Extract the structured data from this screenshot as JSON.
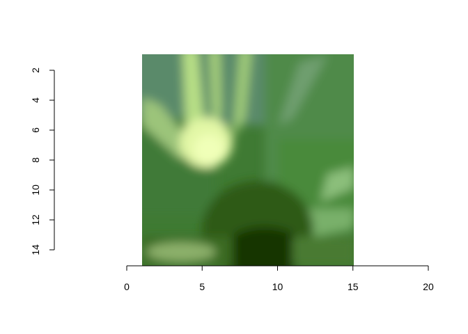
{
  "chart_data": {
    "type": "heatmap",
    "title": "",
    "xlabel": "",
    "ylabel": "",
    "xlim": [
      0,
      20
    ],
    "ylim": [
      1,
      15
    ],
    "y_reversed": true,
    "x_ticks": [
      0,
      5,
      10,
      15,
      20
    ],
    "x_tick_labels": [
      "0",
      "5",
      "10",
      "15",
      "20"
    ],
    "y_ticks": [
      2,
      4,
      6,
      8,
      10,
      12,
      14
    ],
    "y_tick_labels": [
      "2",
      "4",
      "6",
      "8",
      "10",
      "12",
      "14"
    ],
    "image_extent": {
      "x": [
        1,
        15
      ],
      "y": [
        1,
        15
      ]
    },
    "grid": false,
    "legend": "none",
    "colors": {
      "background": "#ffffff",
      "axis": "#000000",
      "image_top_left": "#5a8a6c",
      "image_highlight": "#d8f2a0",
      "image_mid_green": "#4a8a3a",
      "image_dark": "#1a3a05"
    }
  }
}
